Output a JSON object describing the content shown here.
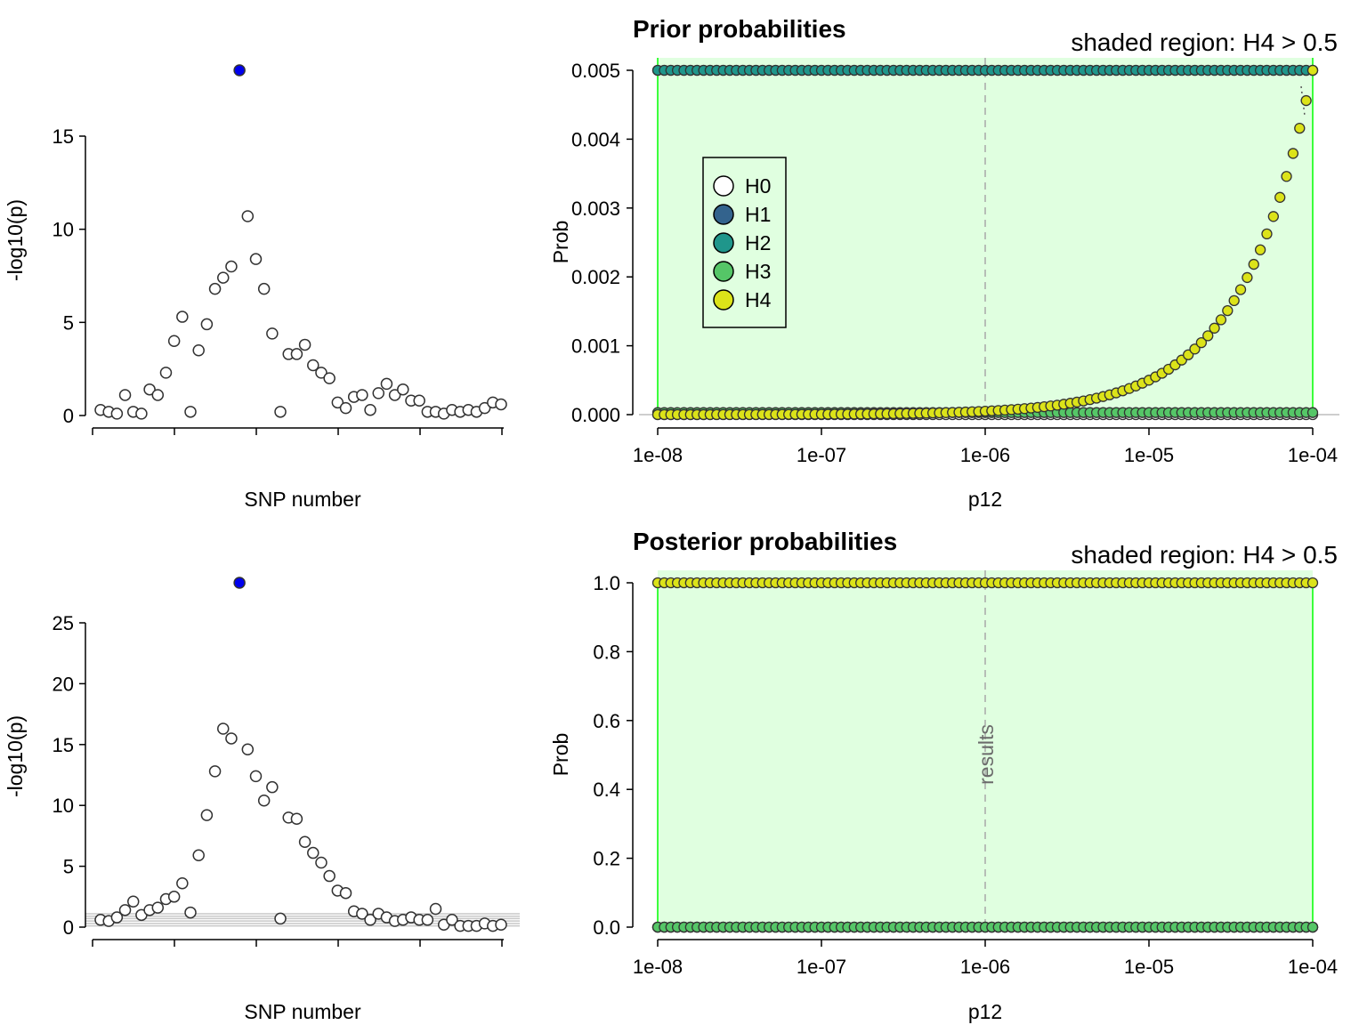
{
  "chart_data": [
    {
      "type": "scatter",
      "xlabel": "SNP number",
      "ylabel": "-log10(p)",
      "ylim": [
        0,
        18.5
      ],
      "yticks": [
        0,
        5,
        10,
        15
      ],
      "x": [
        1,
        2,
        3,
        4,
        5,
        6,
        7,
        8,
        9,
        10,
        11,
        12,
        13,
        14,
        15,
        16,
        17,
        18,
        19,
        20,
        21,
        22,
        23,
        24,
        25,
        26,
        27,
        28,
        29,
        30,
        31,
        32,
        33,
        34,
        35,
        36,
        37,
        38,
        39,
        40,
        41,
        42,
        43,
        44,
        45,
        46,
        47,
        48,
        49,
        50
      ],
      "values": [
        0.3,
        0.2,
        0.1,
        1.1,
        0.2,
        0.1,
        1.4,
        1.1,
        2.3,
        4.0,
        5.3,
        0.2,
        3.5,
        4.9,
        6.8,
        7.4,
        8.0,
        18.5,
        10.7,
        8.4,
        6.8,
        4.4,
        0.2,
        3.3,
        3.3,
        3.8,
        2.7,
        2.3,
        2.0,
        0.7,
        0.4,
        1.0,
        1.1,
        0.3,
        1.2,
        1.7,
        1.1,
        1.4,
        0.8,
        0.8,
        0.2,
        0.2,
        0.1,
        0.3,
        0.2,
        0.3,
        0.2,
        0.4,
        0.7,
        0.6
      ],
      "highlight_index": 17,
      "highlight_color": "#0000ee",
      "point_fill": "#ffffff",
      "point_stroke": "#333333"
    },
    {
      "type": "scatter",
      "xlabel": "SNP number",
      "ylabel": "-log10(p)",
      "ylim": [
        0,
        28.3
      ],
      "yticks": [
        0,
        5,
        10,
        15,
        20,
        25
      ],
      "x": [
        1,
        2,
        3,
        4,
        5,
        6,
        7,
        8,
        9,
        10,
        11,
        12,
        13,
        14,
        15,
        16,
        17,
        18,
        19,
        20,
        21,
        22,
        23,
        24,
        25,
        26,
        27,
        28,
        29,
        30,
        31,
        32,
        33,
        34,
        35,
        36,
        37,
        38,
        39,
        40,
        41,
        42,
        43,
        44,
        45,
        46,
        47,
        48,
        49,
        50
      ],
      "values": [
        0.6,
        0.5,
        0.8,
        1.4,
        2.1,
        1.0,
        1.4,
        1.6,
        2.3,
        2.5,
        3.6,
        1.2,
        5.9,
        9.2,
        12.8,
        16.3,
        15.5,
        28.3,
        14.6,
        12.4,
        10.4,
        11.5,
        0.7,
        9.0,
        8.9,
        7.0,
        6.1,
        5.3,
        4.2,
        3.0,
        2.8,
        1.3,
        1.1,
        0.6,
        1.1,
        0.8,
        0.5,
        0.6,
        0.8,
        0.6,
        0.6,
        1.5,
        0.2,
        0.6,
        0.1,
        0.1,
        0.1,
        0.3,
        0.1,
        0.2
      ],
      "highlight_index": 17,
      "highlight_color": "#0000ee",
      "point_fill": "#ffffff",
      "point_stroke": "#333333",
      "hlines": [
        0.1,
        0.3,
        0.5,
        0.7,
        0.9,
        1.1
      ]
    },
    {
      "type": "scatter",
      "title": "Prior probabilities",
      "subtitle": "shaded region: H4 > 0.5",
      "xlabel": "p12",
      "ylabel": "Prob",
      "x_scale": "log",
      "xlim": [
        1e-08,
        0.0001
      ],
      "xticks": [
        "1e-08",
        "1e-07",
        "1e-06",
        "1e-05",
        "1e-04"
      ],
      "ylim": [
        0,
        0.005
      ],
      "yticks": [
        "0.000",
        "0.001",
        "0.002",
        "0.003",
        "0.004",
        "0.005"
      ],
      "vline_x": 1e-06,
      "shaded_region": [
        1e-08,
        0.0001
      ],
      "shade_color": "#e0ffe0",
      "shade_border_color": "#00ff00",
      "n_points": 101,
      "legend": {
        "position": "left-middle",
        "entries": [
          {
            "label": "H0",
            "color": "#ffffff"
          },
          {
            "label": "H1",
            "color": "#33638d"
          },
          {
            "label": "H2",
            "color": "#1f968b"
          },
          {
            "label": "H3",
            "color": "#55c667"
          },
          {
            "label": "H4",
            "color": "#dce319"
          }
        ]
      },
      "series": [
        {
          "name": "H0",
          "color": "#ffffff",
          "formula": "constant",
          "value": 0.0
        },
        {
          "name": "H1",
          "color": "#33638d",
          "formula": "constant",
          "value": 0.005
        },
        {
          "name": "H2",
          "color": "#1f968b",
          "formula": "constant",
          "value": 0.005
        },
        {
          "name": "H3",
          "color": "#55c667",
          "formula": "constant",
          "value": 3e-05
        },
        {
          "name": "H4",
          "color": "#dce319",
          "formula": "equals_p12_times_50",
          "value": null
        }
      ]
    },
    {
      "type": "scatter",
      "title": "Posterior probabilities",
      "subtitle": "shaded region: H4 > 0.5",
      "xlabel": "p12",
      "ylabel": "Prob",
      "x_scale": "log",
      "xlim": [
        1e-08,
        0.0001
      ],
      "xticks": [
        "1e-08",
        "1e-07",
        "1e-06",
        "1e-05",
        "1e-04"
      ],
      "ylim": [
        0,
        1.0
      ],
      "yticks": [
        "0.0",
        "0.2",
        "0.4",
        "0.6",
        "0.8",
        "1.0"
      ],
      "vline_x": 1e-06,
      "vline_label": "results",
      "shaded_region": [
        1e-08,
        0.0001
      ],
      "shade_color": "#e0ffe0",
      "shade_border_color": "#00ff00",
      "n_points": 101,
      "series": [
        {
          "name": "H0",
          "color": "#ffffff",
          "value": 0.0
        },
        {
          "name": "H1",
          "color": "#33638d",
          "value": 0.0
        },
        {
          "name": "H2",
          "color": "#1f968b",
          "value": 0.0
        },
        {
          "name": "H3",
          "color": "#55c667",
          "value": 0.0
        },
        {
          "name": "H4",
          "color": "#dce319",
          "value": 1.0
        }
      ]
    }
  ]
}
